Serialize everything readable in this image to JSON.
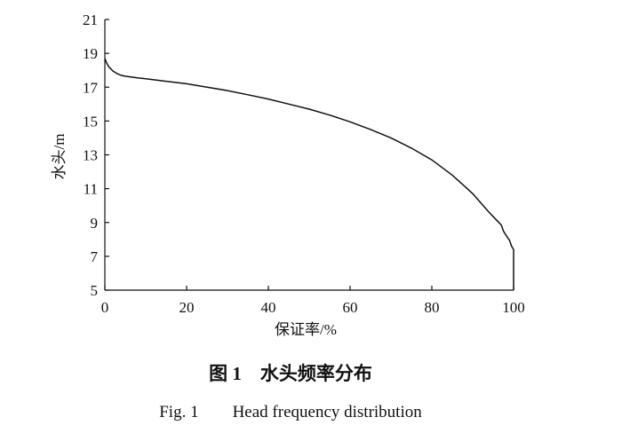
{
  "chart_data": {
    "type": "line",
    "xlabel": "保证率/%",
    "ylabel": "水头/m",
    "xlim": [
      0,
      100
    ],
    "ylim": [
      5,
      21
    ],
    "x_ticks": [
      0,
      20,
      40,
      60,
      80,
      100
    ],
    "y_ticks": [
      5,
      7,
      9,
      11,
      13,
      15,
      17,
      19,
      21
    ],
    "grid": false,
    "series": [
      {
        "x": [
          0,
          0.5,
          1,
          2,
          3,
          4,
          5,
          8,
          10,
          15,
          20,
          25,
          30,
          35,
          40,
          45,
          50,
          55,
          60,
          65,
          70,
          75,
          80,
          85,
          88,
          90,
          92,
          94,
          96,
          97,
          97.5,
          98,
          99,
          99.5,
          100,
          100
        ],
        "y": [
          18.7,
          18.4,
          18.2,
          17.95,
          17.8,
          17.7,
          17.65,
          17.55,
          17.5,
          17.35,
          17.2,
          17.0,
          16.8,
          16.55,
          16.3,
          16.0,
          15.7,
          15.35,
          14.95,
          14.5,
          14.0,
          13.4,
          12.7,
          11.8,
          11.15,
          10.7,
          10.15,
          9.6,
          9.1,
          8.85,
          8.5,
          8.3,
          7.95,
          7.6,
          7.4,
          5.0
        ]
      }
    ]
  },
  "caption": {
    "cn": "图 1　水头频率分布",
    "en": "Fig. 1　　Head frequency distribution"
  }
}
